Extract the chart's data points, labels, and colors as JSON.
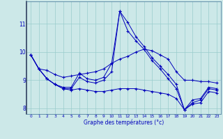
{
  "xlabel": "Graphe des températures (°c)",
  "background_color": "#cce8e8",
  "grid_color": "#99cccc",
  "line_color": "#0000bb",
  "xlim": [
    -0.5,
    23.5
  ],
  "ylim": [
    7.8,
    11.8
  ],
  "yticks": [
    8,
    9,
    10,
    11
  ],
  "xticks": [
    0,
    1,
    2,
    3,
    4,
    5,
    6,
    7,
    8,
    9,
    10,
    11,
    12,
    13,
    14,
    15,
    16,
    17,
    18,
    19,
    20,
    21,
    22,
    23
  ],
  "series": [
    [
      9.9,
      9.4,
      9.35,
      9.2,
      9.1,
      9.15,
      9.2,
      9.25,
      9.3,
      9.4,
      9.6,
      9.75,
      9.85,
      10.0,
      10.1,
      10.05,
      9.9,
      9.75,
      9.3,
      9.0,
      9.0,
      8.95,
      8.95,
      8.9
    ],
    [
      9.9,
      9.4,
      9.05,
      8.85,
      8.75,
      8.75,
      9.25,
      9.05,
      9.0,
      9.1,
      9.6,
      11.45,
      11.05,
      10.55,
      10.2,
      9.8,
      9.5,
      9.2,
      8.85,
      7.95,
      8.3,
      8.35,
      8.75,
      8.7
    ],
    [
      9.9,
      9.4,
      9.05,
      8.85,
      8.7,
      8.7,
      9.1,
      8.95,
      8.9,
      9.0,
      9.3,
      11.45,
      10.75,
      10.4,
      10.1,
      9.7,
      9.4,
      9.05,
      8.7,
      7.95,
      8.2,
      8.3,
      8.7,
      8.65
    ],
    [
      9.9,
      9.4,
      9.05,
      8.85,
      8.7,
      8.65,
      8.7,
      8.65,
      8.6,
      8.6,
      8.65,
      8.7,
      8.7,
      8.7,
      8.65,
      8.6,
      8.55,
      8.5,
      8.35,
      7.95,
      8.15,
      8.2,
      8.6,
      8.55
    ]
  ]
}
